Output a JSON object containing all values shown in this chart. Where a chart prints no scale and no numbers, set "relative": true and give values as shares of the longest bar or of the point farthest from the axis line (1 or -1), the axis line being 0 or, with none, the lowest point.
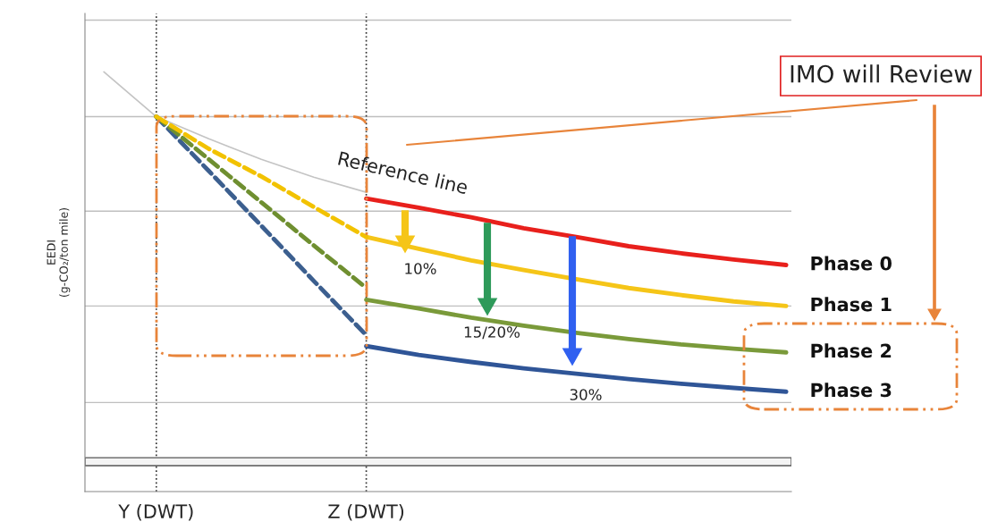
{
  "chart_data": {
    "type": "line",
    "relative": true,
    "ylabel": "EEDI\n(g-CO₂/ton mile)",
    "categories": [
      null,
      "Y (DWT)",
      null,
      null,
      null,
      "Z (DWT)",
      null,
      null,
      null,
      null,
      null,
      null,
      null,
      null
    ],
    "series": [
      {
        "color": "#c4c4c4",
        "line_style": "solid",
        "values": [
          1.0,
          0.893,
          0.84,
          0.791,
          0.748,
          0.712,
          null,
          null,
          null,
          null,
          null,
          null,
          null,
          null
        ]
      },
      {
        "name": "Phase 0",
        "color": "#e8201c",
        "line_style": "solid",
        "values": [
          null,
          null,
          null,
          null,
          null,
          0.697,
          0.675,
          0.652,
          0.626,
          0.605,
          0.583,
          0.566,
          0.551,
          0.538
        ]
      },
      {
        "color": "#f2c200",
        "line_style": "dashed",
        "values": [
          null,
          0.893,
          0.816,
          0.75,
          0.677,
          0.605,
          null,
          null,
          null,
          null,
          null,
          null,
          null,
          null
        ]
      },
      {
        "name": "Phase 1",
        "color": "#f5c518",
        "line_style": "solid",
        "values": [
          null,
          null,
          null,
          null,
          null,
          0.605,
          0.577,
          0.549,
          0.526,
          0.504,
          0.483,
          0.466,
          0.451,
          0.44
        ]
      },
      {
        "color": "#6f8f30",
        "line_style": "dashed",
        "values": [
          null,
          0.893,
          0.791,
          0.688,
          0.585,
          0.483,
          null,
          null,
          null,
          null,
          null,
          null,
          null,
          null
        ]
      },
      {
        "name": "Phase 2",
        "color": "#7a9a3a",
        "line_style": "solid",
        "values": [
          null,
          null,
          null,
          null,
          null,
          0.455,
          0.434,
          0.412,
          0.393,
          0.376,
          0.361,
          0.348,
          0.338,
          0.329
        ]
      },
      {
        "color": "#3c5f8f",
        "line_style": "dashed",
        "values": [
          null,
          0.893,
          0.763,
          0.632,
          0.5,
          0.37,
          null,
          null,
          null,
          null,
          null,
          null,
          null,
          null
        ]
      },
      {
        "name": "Phase 3",
        "color": "#2f5597",
        "line_style": "solid",
        "values": [
          null,
          null,
          null,
          null,
          null,
          0.344,
          0.323,
          0.306,
          0.291,
          0.278,
          0.265,
          0.254,
          0.244,
          0.235
        ]
      }
    ],
    "ref_lines": [
      {
        "axis": "y",
        "value": 1.124,
        "color": "#bfbfbf",
        "line_style": "solid"
      },
      {
        "axis": "y",
        "value": 0.893,
        "color": "#bfbfbf",
        "line_style": "solid"
      },
      {
        "axis": "y",
        "value": 0.667,
        "color": "#bfbfbf",
        "line_style": "solid"
      },
      {
        "axis": "y",
        "value": 0.44,
        "color": "#bfbfbf",
        "line_style": "solid"
      },
      {
        "axis": "y",
        "value": 0.209,
        "color": "#bfbfbf",
        "line_style": "solid"
      },
      {
        "axis": "x",
        "value": "Y (DWT)",
        "color": "#333333",
        "line_style": "dotted"
      },
      {
        "axis": "x",
        "value": "Z (DWT)",
        "color": "#333333",
        "line_style": "dotted"
      }
    ],
    "bands": [
      {
        "axis": "y",
        "from": 0.058,
        "to": 0.077,
        "color": "#f4f4f4"
      }
    ],
    "annotations": [
      "Reference line",
      "IMO will Review",
      "10%",
      "15/20%",
      "30%"
    ]
  }
}
